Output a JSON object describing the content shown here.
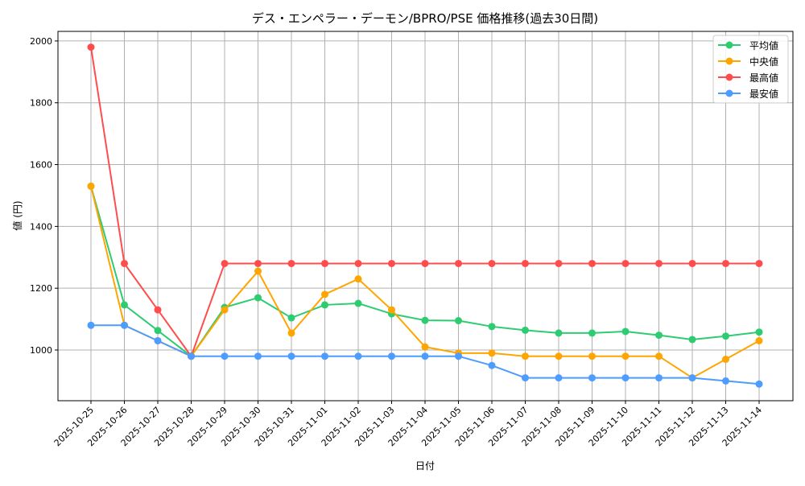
{
  "chart_data": {
    "type": "line",
    "title": "デス・エンペラー・デーモン/BPRO/PSE 価格推移(過去30日間)",
    "xlabel": "日付",
    "ylabel": "値 (円)",
    "ylim": [
      836,
      2031
    ],
    "yticks": [
      1000,
      1200,
      1400,
      1600,
      1800,
      2000
    ],
    "grid": true,
    "legend_position": "top-right",
    "x": [
      "2025-10-25",
      "2025-10-26",
      "2025-10-27",
      "2025-10-28",
      "2025-10-29",
      "2025-10-30",
      "2025-10-31",
      "2025-11-01",
      "2025-11-02",
      "2025-11-03",
      "2025-11-04",
      "2025-11-05",
      "2025-11-06",
      "2025-11-07",
      "2025-11-08",
      "2025-11-09",
      "2025-11-10",
      "2025-11-11",
      "2025-11-12",
      "2025-11-13",
      "2025-11-14"
    ],
    "series": [
      {
        "name": "平均値",
        "color": "#2ecc71",
        "values": [
          1530,
          1146,
          1063,
          980,
          1138,
          1169,
          1104,
          1146,
          1151,
          1117,
          1096,
          1095,
          1076,
          1064,
          1055,
          1055,
          1060,
          1048,
          1034,
          1045,
          1058
        ]
      },
      {
        "name": "中央値",
        "color": "#ffa500",
        "values": [
          1530,
          1080,
          1030,
          980,
          1130,
          1255,
          1055,
          1180,
          1230,
          1130,
          1010,
          990,
          990,
          980,
          980,
          980,
          980,
          980,
          910,
          970,
          1030
        ]
      },
      {
        "name": "最高値",
        "color": "#ff4d4d",
        "values": [
          1980,
          1280,
          1130,
          980,
          1280,
          1280,
          1280,
          1280,
          1280,
          1280,
          1280,
          1280,
          1280,
          1280,
          1280,
          1280,
          1280,
          1280,
          1280,
          1280,
          1280
        ]
      },
      {
        "name": "最安値",
        "color": "#4d9cff",
        "values": [
          1080,
          1080,
          1030,
          980,
          980,
          980,
          980,
          980,
          980,
          980,
          980,
          980,
          950,
          910,
          910,
          910,
          910,
          910,
          910,
          900,
          890
        ]
      }
    ]
  }
}
